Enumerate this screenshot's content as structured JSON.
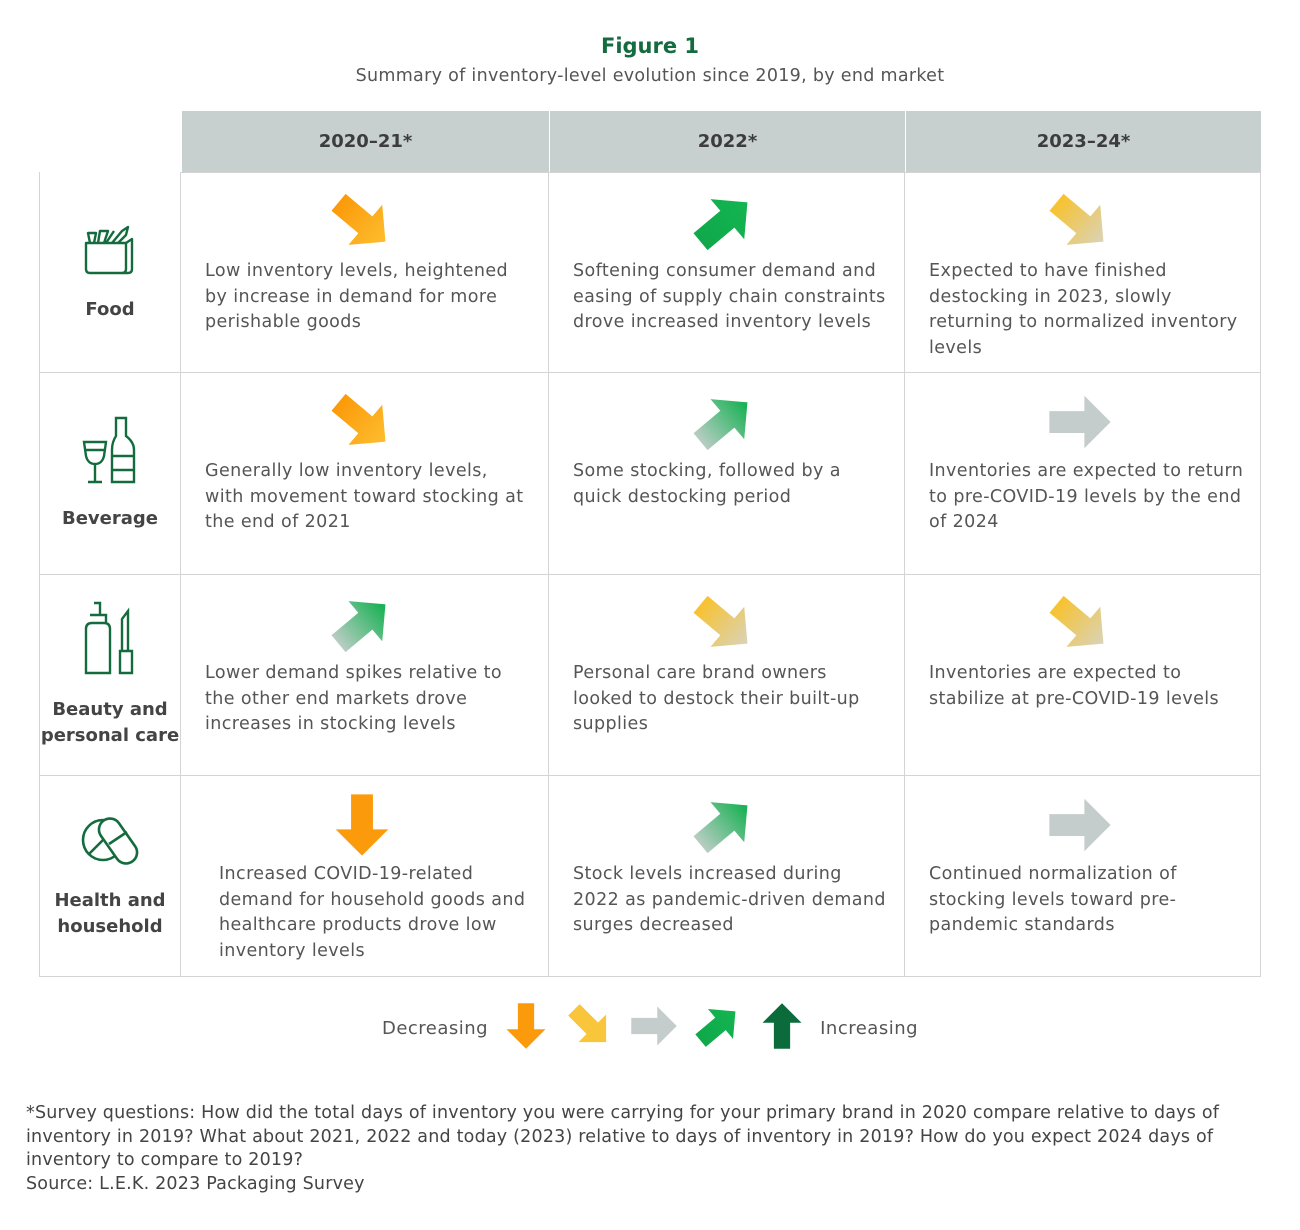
{
  "title": "Figure 1",
  "subtitle": "Summary of inventory-level evolution since 2019, by end market",
  "columns": [
    "2020–21*",
    "2022*",
    "2023–24*"
  ],
  "colors": {
    "dark_green": "#0b6b3a",
    "green": "#11b050",
    "gray": "#c5cdcc",
    "yellow": "#f9c53a",
    "orange": "#fb9a0a",
    "icon_green": "#136b3e"
  },
  "rows": [
    {
      "label": "Food",
      "icon": "grocery-bag-icon",
      "cells": [
        {
          "arrow": "down-right-orange",
          "text": "Low inventory levels, heightened by increase in demand for more perishable goods"
        },
        {
          "arrow": "up-right-green",
          "text": "Softening consumer demand and easing of supply chain constraints drove increased inventory levels"
        },
        {
          "arrow": "down-right-yellow",
          "text": "Expected to have finished destocking in 2023, slowly returning to normalized inventory levels"
        }
      ]
    },
    {
      "label": "Beverage",
      "icon": "wine-bottle-icon",
      "cells": [
        {
          "arrow": "down-right-orange",
          "text": "Generally low inventory levels, with movement toward stocking at the end of 2021"
        },
        {
          "arrow": "up-right-gradient",
          "text": "Some stocking, followed by a quick destocking period"
        },
        {
          "arrow": "right-gray",
          "text": "Inventories are expected to return to pre-COVID-19 levels by the end of 2024"
        }
      ]
    },
    {
      "label": "Beauty and personal care",
      "icon": "cosmetics-icon",
      "cells": [
        {
          "arrow": "up-right-gradient",
          "text": "Lower demand spikes relative to the other end markets drove increases in stocking levels"
        },
        {
          "arrow": "down-right-yellow",
          "text": "Personal care brand owners looked to destock their built-up supplies"
        },
        {
          "arrow": "down-right-yellow",
          "text": "Inventories are expected to stabilize at pre-COVID-19 levels"
        }
      ]
    },
    {
      "label": "Health and household",
      "icon": "pills-icon",
      "cells": [
        {
          "arrow": "down-orange",
          "text": "Increased COVID-19-related demand for household goods and healthcare products drove low inventory levels"
        },
        {
          "arrow": "up-right-gradient",
          "text": "Stock levels increased during 2022 as pandemic-driven demand surges decreased"
        },
        {
          "arrow": "right-gray",
          "text": "Continued normalization of stocking levels toward pre-pandemic standards"
        }
      ]
    }
  ],
  "legend": {
    "left": "Decreasing",
    "right": "Increasing",
    "arrows": [
      "down-orange",
      "down-right-solid-yellow",
      "right-gray",
      "up-right-green",
      "up-dark-green"
    ]
  },
  "footnote": "*Survey questions: How did the total days of inventory you were carrying for your primary brand in 2020 compare relative to days of inventory in 2019? What about 2021, 2022 and today (2023) relative to days of inventory in 2019? How do you expect 2024 days of inventory to compare to 2019?",
  "source": "Source: L.E.K. 2023 Packaging Survey"
}
